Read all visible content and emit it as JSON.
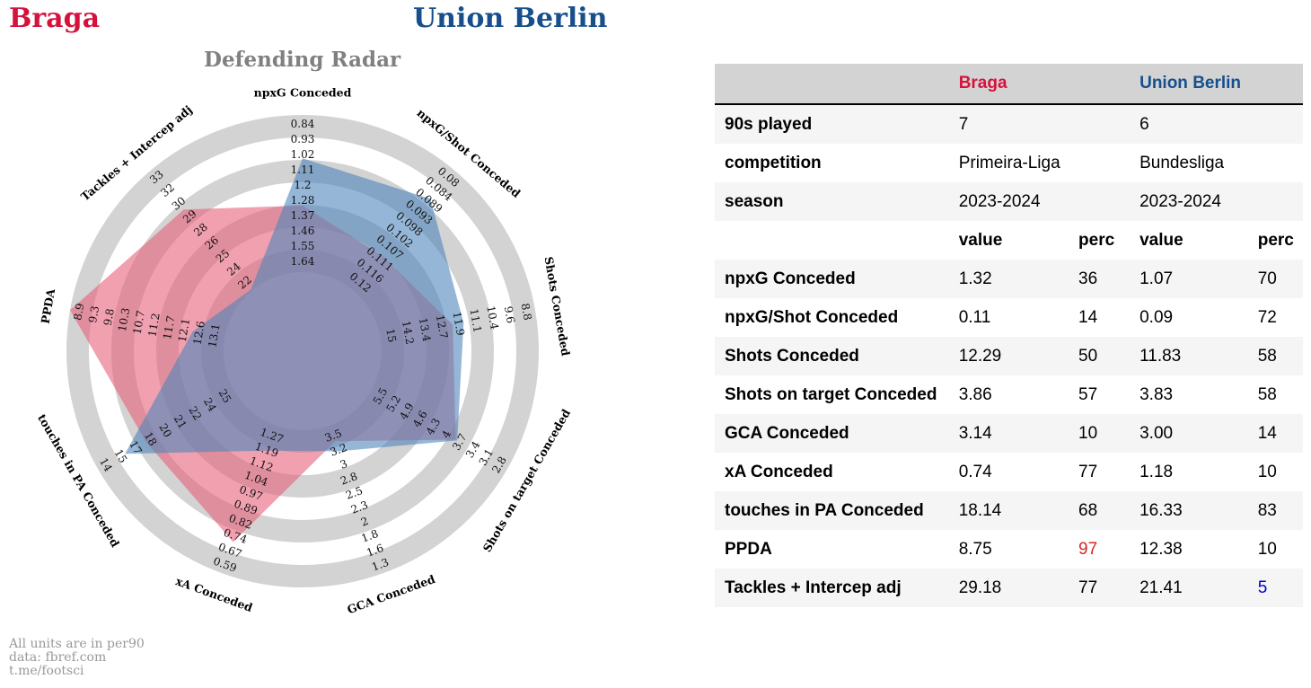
{
  "header": {
    "team_a": "Braga",
    "team_b": "Union Berlin",
    "team_a_color": "#d6123c",
    "team_b_color": "#164f8c"
  },
  "radar_title": "Defending Radar",
  "footer": {
    "line1": "All units are in per90",
    "line2": "data: fbref.com",
    "line3": "t.me/footsci"
  },
  "chart_data": {
    "type": "radar",
    "title": "Defending Radar",
    "grid": true,
    "series": [
      {
        "name": "Braga",
        "color": "#e8607c",
        "values": [
          1.32,
          0.11,
          12.29,
          3.86,
          3.14,
          0.74,
          18.14,
          8.75,
          29.18
        ]
      },
      {
        "name": "Union Berlin",
        "color": "#4f86bb",
        "values": [
          1.07,
          0.09,
          11.83,
          3.83,
          3.0,
          1.18,
          16.33,
          12.38,
          21.41
        ]
      }
    ],
    "axes": [
      {
        "name": "npxG Conceded",
        "center": 1.73,
        "outer": 0.84,
        "ticks": [
          "1.64",
          "1.55",
          "1.46",
          "1.37",
          "1.28",
          "1.2",
          "1.11",
          "1.02",
          "0.93",
          "0.84"
        ]
      },
      {
        "name": "npxG/Shot Conceded",
        "center": 0.125,
        "outer": 0.08,
        "ticks": [
          "0.12",
          "0.116",
          "0.111",
          "0.107",
          "0.102",
          "0.098",
          "0.093",
          "0.089",
          "0.084",
          "0.08"
        ]
      },
      {
        "name": "Shots Conceded",
        "center": 15.8,
        "outer": 8.8,
        "ticks": [
          "15",
          "14.2",
          "13.4",
          "12.7",
          "11.9",
          "11.1",
          "10.4",
          "9.6",
          "8.8"
        ]
      },
      {
        "name": "Shots on target Conceded",
        "center": 5.8,
        "outer": 2.8,
        "ticks": [
          "5.5",
          "5.2",
          "4.9",
          "4.6",
          "4.3",
          "4",
          "3.7",
          "3.4",
          "3.1",
          "2.8"
        ]
      },
      {
        "name": "GCA Conceded",
        "center": 3.5,
        "outer": 1.3,
        "ticks": [
          "3.5",
          "3.2",
          "3",
          "2.8",
          "2.5",
          "2.3",
          "2",
          "1.8",
          "1.6",
          "1.3"
        ]
      },
      {
        "name": "xA Conceded",
        "center": 1.35,
        "outer": 0.59,
        "ticks": [
          "1.27",
          "1.19",
          "1.12",
          "1.04",
          "0.97",
          "0.89",
          "0.82",
          "0.74",
          "0.67",
          "0.59"
        ]
      },
      {
        "name": "touches in PA Conceded",
        "center": 26.6,
        "outer": 14,
        "ticks": [
          "25",
          "24",
          "22",
          "21",
          "20",
          "18",
          "17",
          "15",
          "14"
        ]
      },
      {
        "name": "PPDA",
        "center": 13.6,
        "outer": 8.9,
        "ticks": [
          "13.1",
          "12.6",
          "12.1",
          "11.7",
          "11.2",
          "10.7",
          "10.3",
          "9.8",
          "9.3",
          "8.9"
        ]
      },
      {
        "name": "Tackles + Intercep adj",
        "center": 20.5,
        "outer": 33,
        "ticks": [
          "22",
          "24",
          "25",
          "26",
          "28",
          "29",
          "30",
          "32",
          "33"
        ]
      }
    ]
  },
  "table": {
    "header": [
      "",
      "Braga",
      "",
      "Union Berlin",
      ""
    ],
    "header_colors": [
      "#d6123c",
      "#164f8c"
    ],
    "rows": [
      {
        "label": "90s played",
        "a_val": "7",
        "a_perc": "",
        "b_val": "6",
        "b_perc": ""
      },
      {
        "label": "competition",
        "a_val": "Primeira-Liga",
        "a_perc": "",
        "b_val": "Bundesliga",
        "b_perc": ""
      },
      {
        "label": "season",
        "a_val": "2023-2024",
        "a_perc": "",
        "b_val": "2023-2024",
        "b_perc": ""
      },
      {
        "label": "",
        "a_val": "value",
        "a_perc": "perc",
        "b_val": "value",
        "b_perc": "perc",
        "subheader": true
      },
      {
        "label": "npxG Conceded",
        "a_val": "1.32",
        "a_perc": "36",
        "b_val": "1.07",
        "b_perc": "70"
      },
      {
        "label": "npxG/Shot Conceded",
        "a_val": "0.11",
        "a_perc": "14",
        "b_val": "0.09",
        "b_perc": "72"
      },
      {
        "label": "Shots Conceded",
        "a_val": "12.29",
        "a_perc": "50",
        "b_val": "11.83",
        "b_perc": "58"
      },
      {
        "label": "Shots on target Conceded",
        "a_val": "3.86",
        "a_perc": "57",
        "b_val": "3.83",
        "b_perc": "58"
      },
      {
        "label": "GCA Conceded",
        "a_val": "3.14",
        "a_perc": "10",
        "b_val": "3.00",
        "b_perc": "14"
      },
      {
        "label": "xA Conceded",
        "a_val": "0.74",
        "a_perc": "77",
        "b_val": "1.18",
        "b_perc": "10"
      },
      {
        "label": "touches in PA Conceded",
        "a_val": "18.14",
        "a_perc": "68",
        "b_val": "16.33",
        "b_perc": "83"
      },
      {
        "label": "PPDA",
        "a_val": "8.75",
        "a_perc": "97",
        "a_perc_color": "#d62728",
        "b_val": "12.38",
        "b_perc": "10"
      },
      {
        "label": "Tackles + Intercep adj",
        "a_val": "29.18",
        "a_perc": "77",
        "b_val": "21.41",
        "b_perc": "5",
        "b_perc_color": "#0000cc"
      }
    ]
  }
}
